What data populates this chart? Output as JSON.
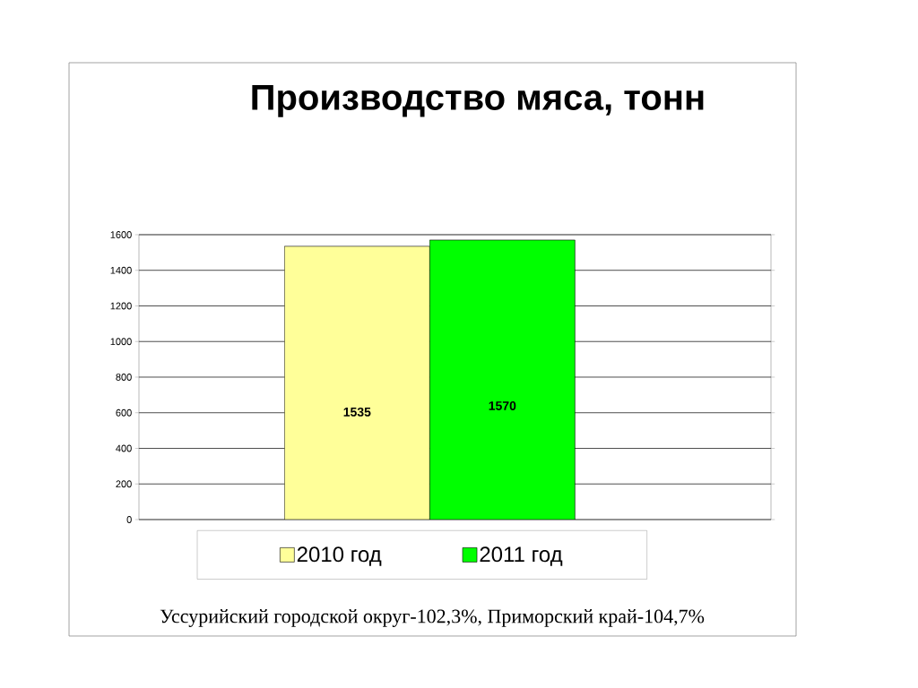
{
  "chart_data": {
    "type": "bar",
    "title": "Производство мяса, тонн",
    "categories": [
      null
    ],
    "series": [
      {
        "name": "2010 год",
        "color": "#ffff99",
        "values": [
          1535
        ]
      },
      {
        "name": "2011 год",
        "color": "#00ff00",
        "values": [
          1570
        ]
      }
    ],
    "ylim": [
      0,
      1600
    ],
    "yticks": [
      0,
      200,
      400,
      600,
      800,
      1000,
      1200,
      1400,
      1600
    ],
    "grid": "y",
    "data_labels": true,
    "legend": "bottom",
    "annotations": [
      "Уссурийский городской округ-102,3%, Приморский край-104,7%"
    ]
  }
}
